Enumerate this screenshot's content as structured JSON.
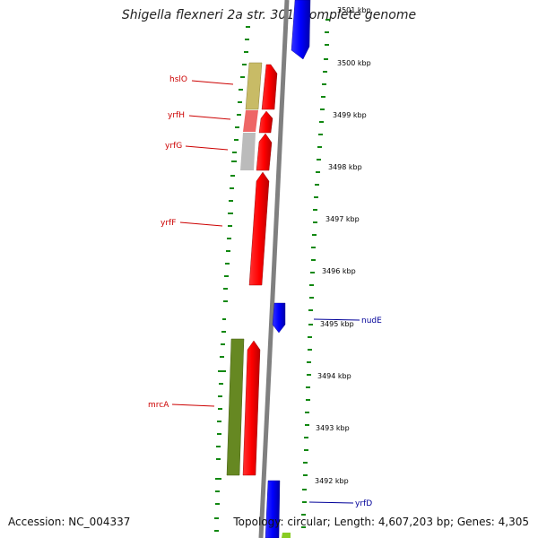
{
  "title": "Shigella flexneri 2a str. 301, complete genome",
  "footer": {
    "accession": "Accession: NC_004337",
    "topology": "Topology: circular; Length: 4,607,203 bp; Genes: 4,305"
  },
  "ticks": [
    {
      "label": "3501 kbp"
    },
    {
      "label": "3500 kbp"
    },
    {
      "label": "3499 kbp"
    },
    {
      "label": "3498 kbp"
    },
    {
      "label": "3497 kbp"
    },
    {
      "label": "3496 kbp"
    },
    {
      "label": "3495 kbp"
    },
    {
      "label": "3494 kbp"
    },
    {
      "label": "3493 kbp"
    },
    {
      "label": "3492 kbp"
    }
  ],
  "gene_labels": [
    {
      "name": "hslO",
      "strand": "forward"
    },
    {
      "name": "yrfH",
      "strand": "forward"
    },
    {
      "name": "yrfG",
      "strand": "forward"
    },
    {
      "name": "yrfF",
      "strand": "forward"
    },
    {
      "name": "mrcA",
      "strand": "forward"
    },
    {
      "name": "nudE",
      "strand": "reverse"
    },
    {
      "name": "yrfD",
      "strand": "reverse"
    }
  ],
  "colors": {
    "forward_gene": "#ff0000",
    "reverse_gene": "#0000ff",
    "backbone": "#808080",
    "tick_dash": "#118811",
    "cog_hslO": "#c8bb66",
    "cog_yrfH": "#ee6666",
    "cog_yrfG": "#bbbbbb",
    "cog_mrcA": "#668822"
  }
}
